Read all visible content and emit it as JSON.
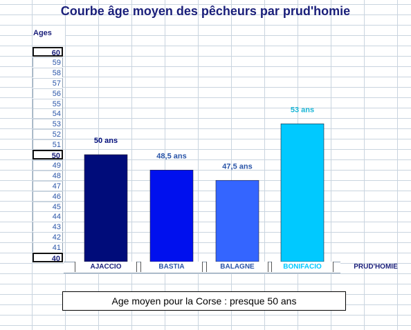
{
  "chart_data": {
    "type": "bar",
    "title": "Courbe âge moyen des pêcheurs par prud'homie",
    "ylabel": "Ages",
    "xlabel": "PRUD'HOMIE",
    "ylim": [
      40,
      60
    ],
    "yticks": [
      "60",
      "59",
      "58",
      "57",
      "56",
      "55",
      "54",
      "53",
      "52",
      "51",
      "50",
      "49",
      "48",
      "47",
      "46",
      "45",
      "44",
      "43",
      "42",
      "41",
      "40"
    ],
    "categories": [
      "AJACCIO",
      "BASTIA",
      "BALAGNE",
      "BONIFACIO"
    ],
    "values": [
      50,
      48.5,
      47.5,
      53
    ],
    "data_labels": [
      "50 ans",
      "48,5 ans",
      "47,5 ans",
      "53 ans"
    ],
    "bar_colors": [
      "#000c7a",
      "#0010ee",
      "#3465ff",
      "#00c9ff"
    ],
    "label_colors": [
      "#000c7a",
      "#2a55a8",
      "#2a55a8",
      "#19b6d6"
    ],
    "grid": true,
    "legend": "none"
  },
  "footer_note": "Age moyen pour la Corse : presque 50 ans"
}
